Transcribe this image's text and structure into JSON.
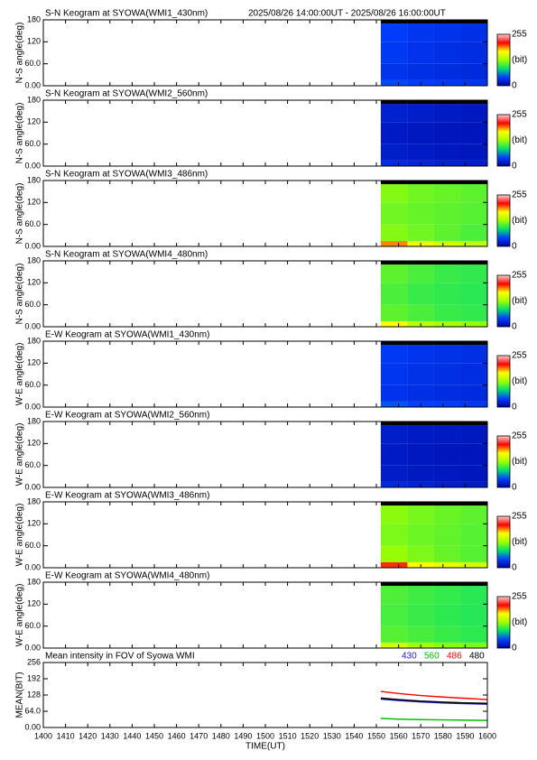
{
  "chart_data": [
    {
      "type": "heatmap",
      "title": "S-N Keogram at SYOWA(WMI1_430nm)",
      "period": "2025/08/26 14:00:00UT - 2025/08/26 16:00:00UT",
      "ylabel": "N-S angle(deg)",
      "xlim": [
        1400,
        1600
      ],
      "ylim": [
        0,
        180
      ],
      "yticks": [
        {
          "value": 0,
          "label": "0.00"
        },
        {
          "value": 60,
          "label": "60.0"
        },
        120,
        180
      ],
      "xbins": [
        1552,
        1564,
        1576,
        1588,
        1600
      ],
      "ybins": [
        0,
        15,
        60,
        120,
        170,
        180
      ],
      "values": [
        [
          45,
          40,
          38,
          35
        ],
        [
          35,
          32,
          30,
          28
        ],
        [
          38,
          34,
          32,
          30
        ],
        [
          40,
          36,
          34,
          32
        ],
        [
          null,
          null,
          null,
          null
        ]
      ],
      "clim": [
        0,
        255
      ],
      "cticks": [
        0,
        255
      ],
      "clabel": "(bit)",
      "colorscale": [
        "#00009a",
        "#0040ff",
        "#00e070",
        "#a0ff00",
        "#ffff00",
        "#ff0000",
        "#ffd0d0"
      ]
    },
    {
      "type": "heatmap",
      "title": "S-N Keogram at SYOWA(WMI2_560nm)",
      "ylabel": "N-S angle(deg)",
      "xlim": [
        1400,
        1600
      ],
      "ylim": [
        0,
        180
      ],
      "yticks": [
        {
          "value": 0,
          "label": "0.00"
        },
        {
          "value": 60,
          "label": "60.0"
        },
        120,
        180
      ],
      "xbins": [
        1552,
        1564,
        1576,
        1588,
        1600
      ],
      "ybins": [
        0,
        15,
        60,
        120,
        170,
        180
      ],
      "values": [
        [
          30,
          25,
          22,
          20
        ],
        [
          20,
          18,
          16,
          15
        ],
        [
          18,
          16,
          15,
          14
        ],
        [
          22,
          20,
          18,
          16
        ],
        [
          null,
          null,
          null,
          null
        ]
      ],
      "clim": [
        0,
        255
      ],
      "cticks": [
        0,
        255
      ],
      "clabel": "(bit)",
      "colorscale": [
        "#00009a",
        "#0040ff",
        "#00e070",
        "#a0ff00",
        "#ffff00",
        "#ff0000",
        "#ffd0d0"
      ]
    },
    {
      "type": "heatmap",
      "title": "S-N Keogram at SYOWA(WMI3_486nm)",
      "ylabel": "N-S angle(deg)",
      "xlim": [
        1400,
        1600
      ],
      "ylim": [
        0,
        180
      ],
      "yticks": [
        {
          "value": 0,
          "label": "0.00"
        },
        {
          "value": 60,
          "label": "60.0"
        },
        120,
        180
      ],
      "xbins": [
        1552,
        1564,
        1576,
        1588,
        1600
      ],
      "ybins": [
        0,
        15,
        60,
        120,
        170,
        180
      ],
      "values": [
        [
          190,
          160,
          150,
          140
        ],
        [
          120,
          115,
          110,
          105
        ],
        [
          115,
          112,
          110,
          108
        ],
        [
          120,
          115,
          112,
          110
        ],
        [
          null,
          null,
          null,
          null
        ]
      ],
      "clim": [
        0,
        255
      ],
      "cticks": [
        0,
        255
      ],
      "clabel": "(bit)",
      "colorscale": [
        "#00009a",
        "#0040ff",
        "#00e070",
        "#a0ff00",
        "#ffff00",
        "#ff0000",
        "#ffd0d0"
      ]
    },
    {
      "type": "heatmap",
      "title": "S-N Keogram at SYOWA(WMI4_480nm)",
      "ylabel": "N-S angle(deg)",
      "xlim": [
        1400,
        1600
      ],
      "ylim": [
        0,
        180
      ],
      "yticks": [
        {
          "value": 0,
          "label": "0.00"
        },
        {
          "value": 60,
          "label": "60.0"
        },
        120,
        180
      ],
      "xbins": [
        1552,
        1564,
        1576,
        1588,
        1600
      ],
      "ybins": [
        0,
        15,
        60,
        120,
        170,
        180
      ],
      "values": [
        [
          170,
          140,
          130,
          125
        ],
        [
          110,
          105,
          100,
          98
        ],
        [
          105,
          100,
          98,
          96
        ],
        [
          110,
          105,
          100,
          98
        ],
        [
          null,
          null,
          null,
          null
        ]
      ],
      "clim": [
        0,
        255
      ],
      "cticks": [
        0,
        255
      ],
      "clabel": "(bit)",
      "colorscale": [
        "#00009a",
        "#0040ff",
        "#00e070",
        "#a0ff00",
        "#ffff00",
        "#ff0000",
        "#ffd0d0"
      ]
    },
    {
      "type": "heatmap",
      "title": "E-W Keogram at SYOWA(WMI1_430nm)",
      "ylabel": "W-E angle(deg)",
      "xlim": [
        1400,
        1600
      ],
      "ylim": [
        0,
        180
      ],
      "yticks": [
        {
          "value": 0,
          "label": "0.00"
        },
        {
          "value": 60,
          "label": "60.0"
        },
        120,
        180
      ],
      "xbins": [
        1552,
        1564,
        1576,
        1588,
        1600
      ],
      "ybins": [
        0,
        15,
        60,
        120,
        170,
        180
      ],
      "values": [
        [
          48,
          42,
          40,
          36
        ],
        [
          34,
          31,
          30,
          28
        ],
        [
          36,
          33,
          31,
          30
        ],
        [
          38,
          35,
          33,
          31
        ],
        [
          null,
          null,
          null,
          null
        ]
      ],
      "clim": [
        0,
        255
      ],
      "cticks": [
        0,
        255
      ],
      "clabel": "(bit)",
      "colorscale": [
        "#00009a",
        "#0040ff",
        "#00e070",
        "#a0ff00",
        "#ffff00",
        "#ff0000",
        "#ffd0d0"
      ]
    },
    {
      "type": "heatmap",
      "title": "E-W Keogram at SYOWA(WMI2_560nm)",
      "ylabel": "W-E angle(deg)",
      "xlim": [
        1400,
        1600
      ],
      "ylim": [
        0,
        180
      ],
      "yticks": [
        {
          "value": 0,
          "label": "0.00"
        },
        {
          "value": 60,
          "label": "60.0"
        },
        120,
        180
      ],
      "xbins": [
        1552,
        1564,
        1576,
        1588,
        1600
      ],
      "ybins": [
        0,
        15,
        60,
        120,
        170,
        180
      ],
      "values": [
        [
          28,
          24,
          21,
          19
        ],
        [
          19,
          17,
          16,
          15
        ],
        [
          18,
          16,
          15,
          14
        ],
        [
          20,
          18,
          17,
          16
        ],
        [
          null,
          null,
          null,
          null
        ]
      ],
      "clim": [
        0,
        255
      ],
      "cticks": [
        0,
        255
      ],
      "clabel": "(bit)",
      "colorscale": [
        "#00009a",
        "#0040ff",
        "#00e070",
        "#a0ff00",
        "#ffff00",
        "#ff0000",
        "#ffd0d0"
      ]
    },
    {
      "type": "heatmap",
      "title": "E-W Keogram at SYOWA(WMI3_486nm)",
      "ylabel": "W-E angle(deg)",
      "xlim": [
        1400,
        1600
      ],
      "ylim": [
        0,
        180
      ],
      "yticks": [
        {
          "value": 0,
          "label": "0.00"
        },
        {
          "value": 60,
          "label": "60.0"
        },
        120,
        180
      ],
      "xbins": [
        1552,
        1564,
        1576,
        1588,
        1600
      ],
      "ybins": [
        0,
        15,
        60,
        120,
        170,
        180
      ],
      "values": [
        [
          205,
          170,
          160,
          150
        ],
        [
          125,
          118,
          112,
          108
        ],
        [
          118,
          114,
          111,
          108
        ],
        [
          122,
          117,
          113,
          110
        ],
        [
          null,
          null,
          null,
          null
        ]
      ],
      "clim": [
        0,
        255
      ],
      "cticks": [
        0,
        255
      ],
      "clabel": "(bit)",
      "colorscale": [
        "#00009a",
        "#0040ff",
        "#00e070",
        "#a0ff00",
        "#ffff00",
        "#ff0000",
        "#ffd0d0"
      ]
    },
    {
      "type": "heatmap",
      "title": "E-W Keogram at SYOWA(WMI4_480nm)",
      "ylabel": "W-E angle(deg)",
      "xlim": [
        1400,
        1600
      ],
      "ylim": [
        0,
        180
      ],
      "yticks": [
        {
          "value": 0,
          "label": "0.00"
        },
        {
          "value": 60,
          "label": "60.0"
        },
        120,
        180
      ],
      "xbins": [
        1552,
        1564,
        1576,
        1588,
        1600
      ],
      "ybins": [
        0,
        15,
        60,
        120,
        170,
        180
      ],
      "values": [
        [
          150,
          130,
          122,
          118
        ],
        [
          108,
          104,
          100,
          97
        ],
        [
          104,
          100,
          97,
          95
        ],
        [
          106,
          102,
          99,
          96
        ],
        [
          null,
          null,
          null,
          null
        ]
      ],
      "clim": [
        0,
        255
      ],
      "cticks": [
        0,
        255
      ],
      "clabel": "(bit)",
      "colorscale": [
        "#00009a",
        "#0040ff",
        "#00e070",
        "#a0ff00",
        "#ffff00",
        "#ff0000",
        "#ffd0d0"
      ]
    },
    {
      "type": "line",
      "title": "Mean intensity in FOV of Syowa WMI",
      "ylabel": "MEAN(BIT)",
      "xlabel": "TIME(UT)",
      "xlim": [
        1400,
        1600
      ],
      "xticks": [
        1400,
        1410,
        1420,
        1430,
        1440,
        1450,
        1460,
        1470,
        1480,
        1490,
        1500,
        1510,
        1520,
        1530,
        1540,
        1550,
        1560,
        1570,
        1580,
        1590,
        1600
      ],
      "ylim": [
        0,
        256
      ],
      "yticks": [
        {
          "value": 0,
          "label": "0.00"
        },
        {
          "value": 64,
          "label": "64.0"
        },
        128,
        192,
        256
      ],
      "x": [
        1552,
        1560,
        1570,
        1580,
        1590,
        1600
      ],
      "series": [
        {
          "name": "430",
          "color": "#2020c0",
          "values": [
            112,
            106,
            101,
            97,
            94,
            92
          ]
        },
        {
          "name": "560",
          "color": "#00c000",
          "values": [
            36,
            33,
            31,
            30,
            29,
            28
          ]
        },
        {
          "name": "486",
          "color": "#ff0000",
          "values": [
            142,
            134,
            126,
            120,
            115,
            110
          ]
        },
        {
          "name": "480",
          "color": "#000000",
          "values": [
            116,
            110,
            104,
            100,
            97,
            95
          ]
        }
      ]
    }
  ]
}
